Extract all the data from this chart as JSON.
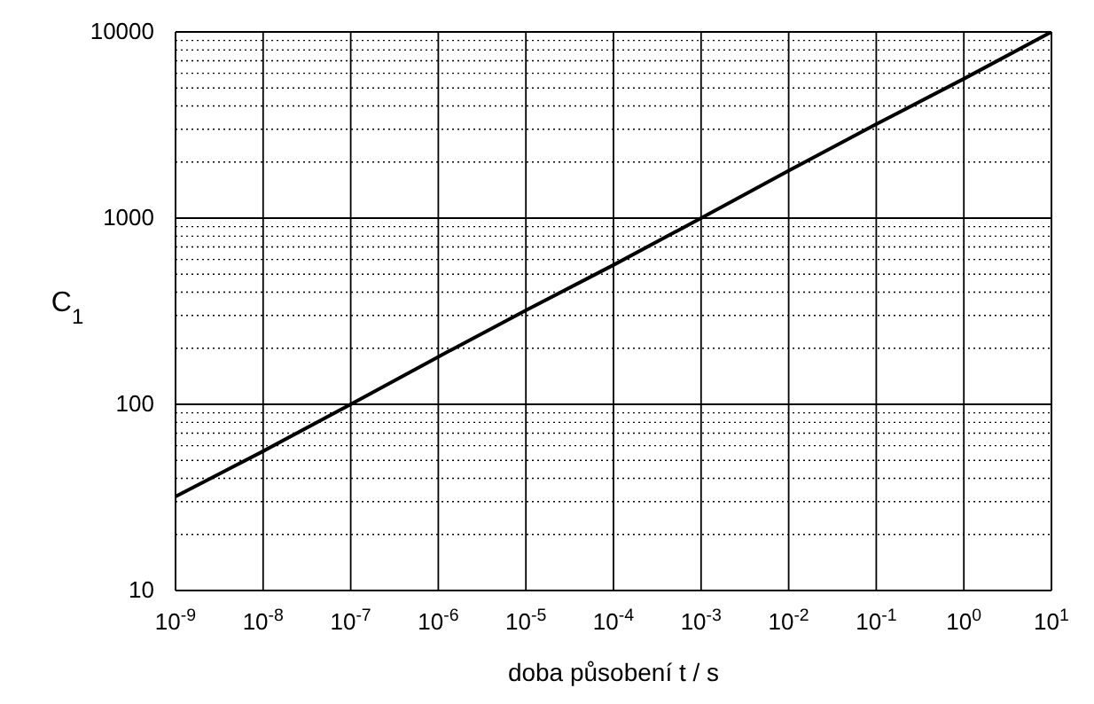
{
  "chart_data": {
    "type": "line",
    "xlabel": "doba působení t / s",
    "ylabel": "C$_{1}$",
    "log": "xy",
    "grid": true,
    "marker": "none",
    "line_style": "solid",
    "xlim": [
      1e-09,
      10
    ],
    "ylim": [
      10,
      10000
    ],
    "xticks": [
      {
        "value": 1e-09,
        "label": "10$^{-9}$"
      },
      {
        "value": 1e-08,
        "label": "10$^{-8}$"
      },
      {
        "value": 1e-07,
        "label": "10$^{-7}$"
      },
      {
        "value": 1e-06,
        "label": "10$^{-6}$"
      },
      {
        "value": 1e-05,
        "label": "10$^{-5}$"
      },
      {
        "value": 0.0001,
        "label": "10$^{-4}$"
      },
      {
        "value": 0.001,
        "label": "10$^{-3}$"
      },
      {
        "value": 0.01,
        "label": "10$^{-2}$"
      },
      {
        "value": 0.1,
        "label": "10$^{-1}$"
      },
      {
        "value": 1,
        "label": "10$^{0}$"
      },
      {
        "value": 10,
        "label": "10$^{1}$"
      }
    ],
    "yticks": [
      10,
      {
        "value": 20,
        "label": null
      },
      {
        "value": 30,
        "label": null
      },
      {
        "value": 40,
        "label": null
      },
      {
        "value": 50,
        "label": null
      },
      {
        "value": 60,
        "label": null
      },
      {
        "value": 70,
        "label": null
      },
      {
        "value": 80,
        "label": null
      },
      {
        "value": 90,
        "label": null
      },
      100,
      {
        "value": 200,
        "label": null
      },
      {
        "value": 300,
        "label": null
      },
      {
        "value": 400,
        "label": null
      },
      {
        "value": 500,
        "label": null
      },
      {
        "value": 600,
        "label": null
      },
      {
        "value": 700,
        "label": null
      },
      {
        "value": 800,
        "label": null
      },
      {
        "value": 900,
        "label": null
      },
      1000,
      {
        "value": 2000,
        "label": null
      },
      {
        "value": 3000,
        "label": null
      },
      {
        "value": 4000,
        "label": null
      },
      {
        "value": 5000,
        "label": null
      },
      {
        "value": 6000,
        "label": null
      },
      {
        "value": 7000,
        "label": null
      },
      {
        "value": 8000,
        "label": null
      },
      {
        "value": 9000,
        "label": null
      },
      10000
    ],
    "x": [
      1e-09,
      1e-08,
      1e-07,
      1e-06,
      1e-05,
      0.0001,
      0.001,
      0.01,
      0.1,
      1,
      10
    ],
    "series": [
      {
        "color": "#000000",
        "values": [
          32,
          56,
          100,
          180,
          320,
          560,
          1000,
          1800,
          3200,
          5600,
          10000
        ]
      }
    ]
  }
}
